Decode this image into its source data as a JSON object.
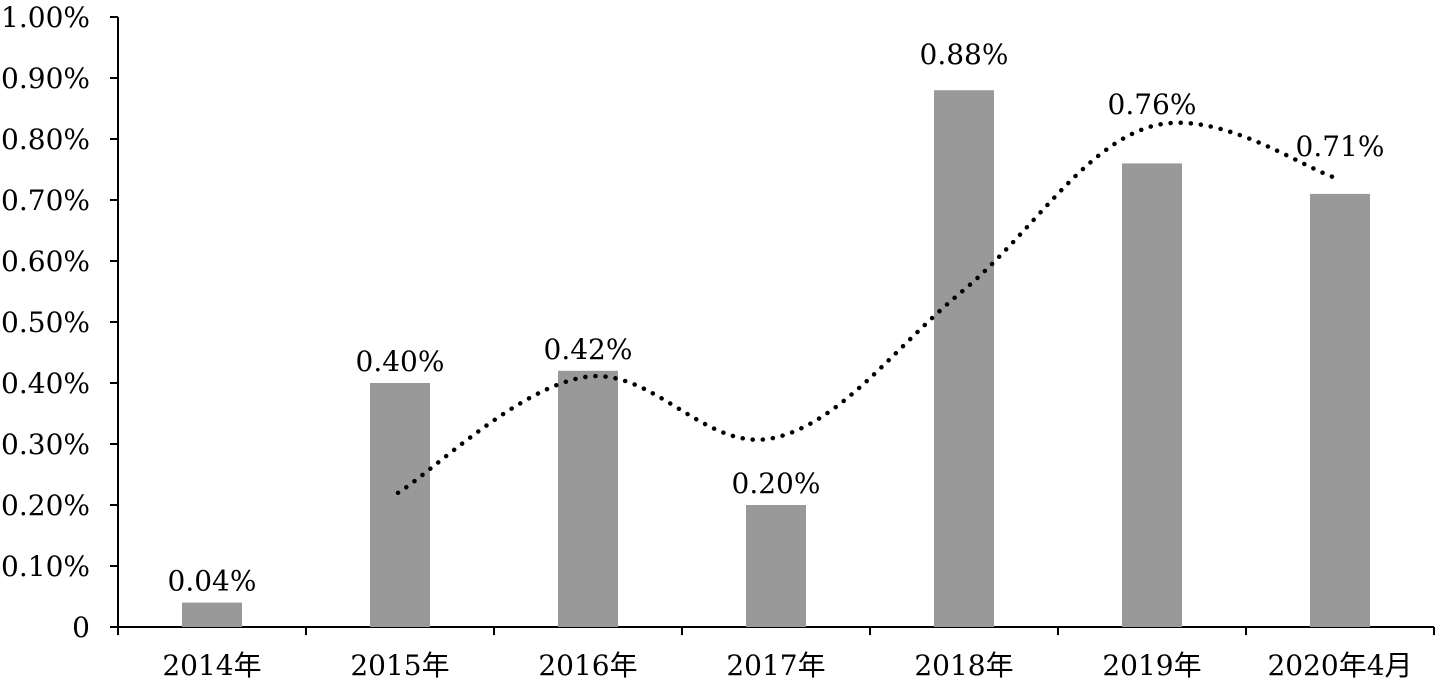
{
  "chart_data": {
    "type": "bar",
    "categories": [
      "2014年",
      "2015年",
      "2016年",
      "2017年",
      "2018年",
      "2019年",
      "2020年4月"
    ],
    "series": [
      {
        "type": "bar",
        "values": [
          0.04,
          0.4,
          0.42,
          0.2,
          0.88,
          0.76,
          0.71
        ],
        "data_labels": [
          "0.04%",
          "0.40%",
          "0.42%",
          "0.20%",
          "0.88%",
          "0.76%",
          "0.71%"
        ],
        "color": "#999999"
      },
      {
        "type": "line",
        "style": "dotted",
        "values": [
          null,
          0.22,
          0.41,
          0.31,
          0.55,
          0.82,
          0.735
        ],
        "color": "#000000"
      }
    ],
    "y_ticks": [
      "0",
      "0.10%",
      "0.20%",
      "0.30%",
      "0.40%",
      "0.50%",
      "0.60%",
      "0.70%",
      "0.80%",
      "0.90%",
      "1.00%"
    ],
    "ylim": [
      0,
      1.0
    ],
    "title": "",
    "xlabel": "",
    "ylabel": "",
    "grid": false,
    "legend": "none"
  }
}
